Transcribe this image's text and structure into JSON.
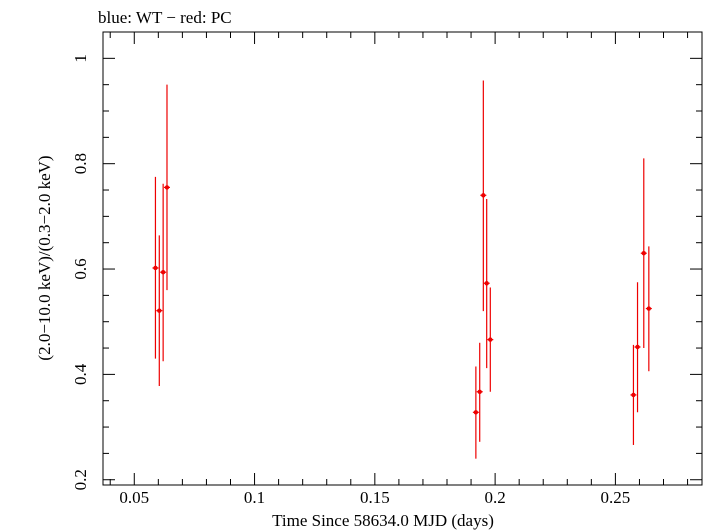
{
  "chart_data": {
    "type": "scatter",
    "title": "blue: WT − red: PC",
    "xlabel": "Time Since 58634.0 MJD (days)",
    "ylabel": "(2.0−10.0 keV)/(0.3−2.0 keV)",
    "xlim": [
      0.037,
      0.286
    ],
    "ylim": [
      0.19,
      1.05
    ],
    "x_ticks": [
      0.05,
      0.1,
      0.15,
      0.2,
      0.25
    ],
    "x_tick_labels": [
      "0.05",
      "0.1",
      "0.15",
      "0.2",
      "0.25"
    ],
    "y_ticks": [
      0.2,
      0.4,
      0.6,
      0.8,
      1.0
    ],
    "y_tick_labels": [
      "0.2",
      "0.4",
      "0.6",
      "0.8",
      "1"
    ],
    "grid": false,
    "legend": "none",
    "series": [
      {
        "name": "PC",
        "color": "#ee0000",
        "points": [
          {
            "x": 0.0588,
            "y": 0.602,
            "ylo": 0.43,
            "yhi": 0.775
          },
          {
            "x": 0.0604,
            "y": 0.521,
            "ylo": 0.378,
            "yhi": 0.664
          },
          {
            "x": 0.062,
            "y": 0.594,
            "ylo": 0.425,
            "yhi": 0.762
          },
          {
            "x": 0.0636,
            "y": 0.755,
            "ylo": 0.56,
            "yhi": 0.95
          },
          {
            "x": 0.192,
            "y": 0.328,
            "ylo": 0.24,
            "yhi": 0.415
          },
          {
            "x": 0.1936,
            "y": 0.367,
            "ylo": 0.272,
            "yhi": 0.46
          },
          {
            "x": 0.1951,
            "y": 0.74,
            "ylo": 0.52,
            "yhi": 0.958
          },
          {
            "x": 0.1965,
            "y": 0.573,
            "ylo": 0.412,
            "yhi": 0.733
          },
          {
            "x": 0.198,
            "y": 0.466,
            "ylo": 0.367,
            "yhi": 0.565
          },
          {
            "x": 0.2575,
            "y": 0.361,
            "ylo": 0.266,
            "yhi": 0.456
          },
          {
            "x": 0.2592,
            "y": 0.452,
            "ylo": 0.328,
            "yhi": 0.575
          },
          {
            "x": 0.2618,
            "y": 0.63,
            "ylo": 0.45,
            "yhi": 0.81
          },
          {
            "x": 0.2639,
            "y": 0.525,
            "ylo": 0.406,
            "yhi": 0.643
          }
        ]
      }
    ]
  }
}
